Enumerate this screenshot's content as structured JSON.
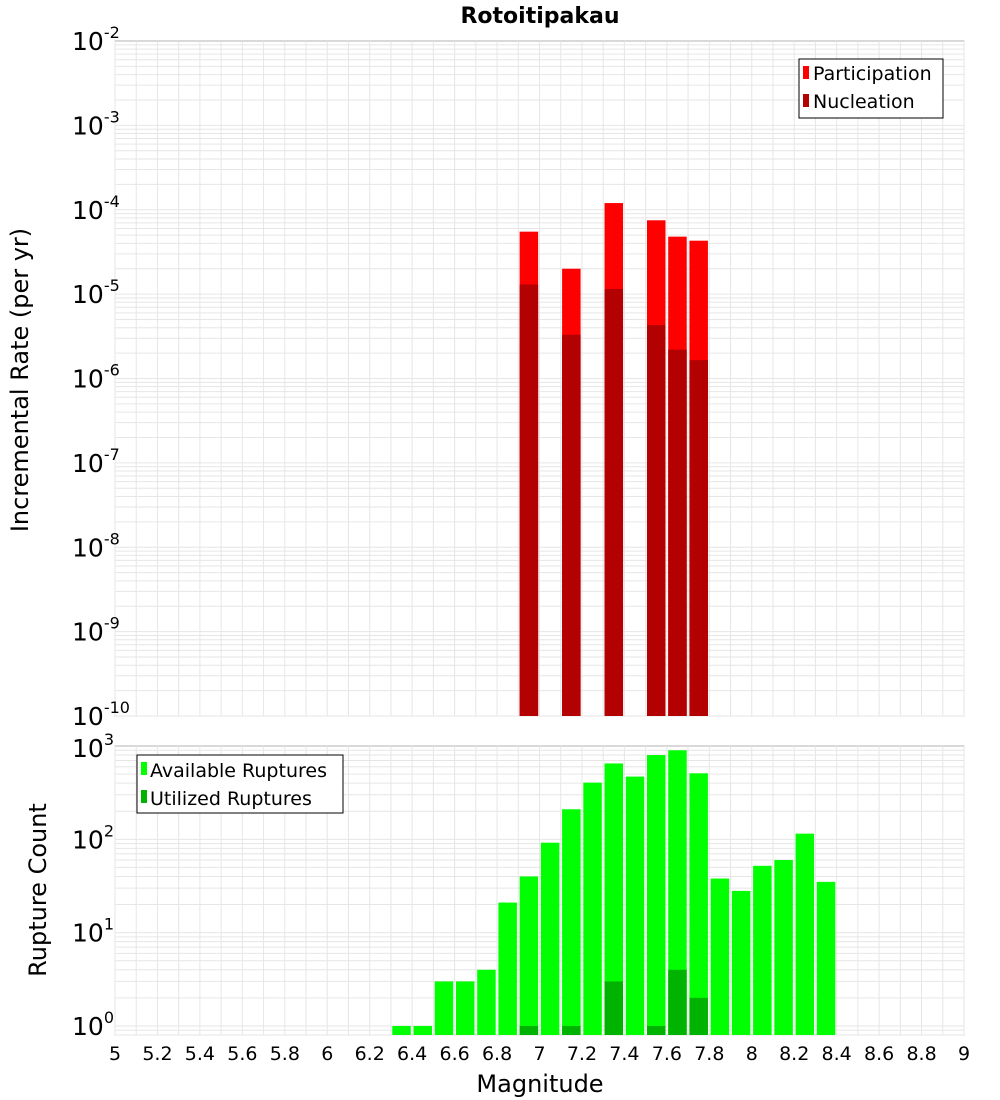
{
  "title": "Rotoitipakau",
  "x_axis_label": "Magnitude",
  "colors": {
    "participation": "#ff0000",
    "nucleation": "#b30000",
    "available": "#00ff00",
    "utilized": "#00b300",
    "grid": "#e6e6e6",
    "frame": "#b3b3b3"
  },
  "chart_data": [
    {
      "type": "bar",
      "xlabel": "Magnitude",
      "ylabel": "Incremental Rate (per yr)",
      "xlim": [
        5,
        9
      ],
      "ylim": [
        1e-10,
        0.01
      ],
      "yscale": "log",
      "grid": true,
      "legend_position": "top-right",
      "x_ticks": [
        "5",
        "5.2",
        "5.4",
        "5.6",
        "5.8",
        "6",
        "6.2",
        "6.4",
        "6.6",
        "6.8",
        "7",
        "7.2",
        "7.4",
        "7.6",
        "7.8",
        "8",
        "8.2",
        "8.4",
        "8.6",
        "8.8",
        "9"
      ],
      "y_tick_exponents": [
        -10,
        -9,
        -8,
        -7,
        -6,
        -5,
        -4,
        -3,
        -2
      ],
      "x": [
        6.95,
        7.15,
        7.35,
        7.55,
        7.65,
        7.75
      ],
      "series": [
        {
          "name": "Participation",
          "values": [
            5.5e-05,
            2e-05,
            0.00012,
            7.5e-05,
            4.8e-05,
            4.3e-05
          ]
        },
        {
          "name": "Nucleation",
          "values": [
            1.3e-05,
            3.3e-06,
            1.15e-05,
            4.3e-06,
            2.2e-06,
            1.65e-06
          ]
        }
      ]
    },
    {
      "type": "bar",
      "xlabel": "Magnitude",
      "ylabel": "Rupture Count",
      "xlim": [
        5,
        9
      ],
      "ylim": [
        0.8,
        1000
      ],
      "yscale": "log",
      "grid": true,
      "legend_position": "top-left",
      "y_tick_exponents": [
        0,
        1,
        2,
        3
      ],
      "x": [
        6.35,
        6.45,
        6.55,
        6.65,
        6.75,
        6.85,
        6.95,
        7.05,
        7.15,
        7.25,
        7.35,
        7.45,
        7.55,
        7.65,
        7.75,
        7.85,
        7.95,
        8.05,
        8.15,
        8.25,
        8.35
      ],
      "series": [
        {
          "name": "Available Ruptures",
          "values": [
            1,
            1,
            3,
            3,
            4,
            21,
            40,
            92,
            210,
            405,
            650,
            470,
            800,
            900,
            510,
            38,
            28,
            52,
            60,
            115,
            35
          ]
        },
        {
          "name": "Utilized Ruptures",
          "x": [
            6.95,
            7.15,
            7.35,
            7.55,
            7.65,
            7.75
          ],
          "values": [
            1,
            1,
            3,
            1,
            4,
            2
          ]
        }
      ]
    }
  ]
}
